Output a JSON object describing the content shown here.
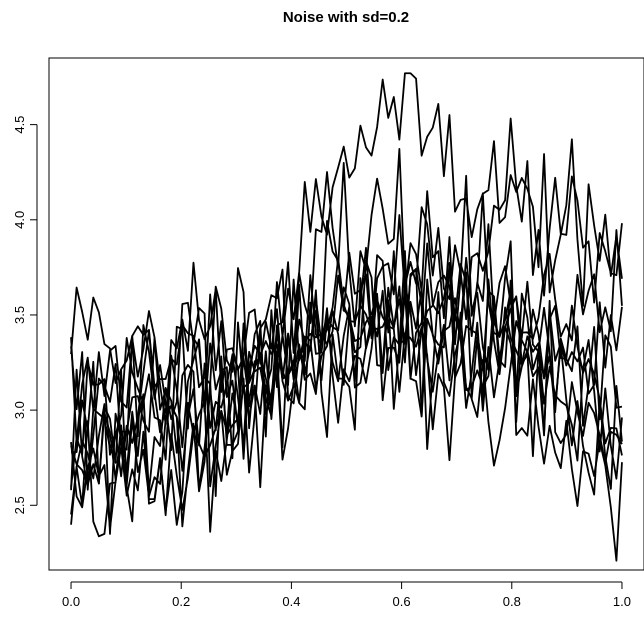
{
  "chart_data": {
    "type": "line",
    "title": "Noise with sd=0.2",
    "xlabel": "",
    "ylabel": "",
    "xlim": [
      -0.04,
      1.04
    ],
    "ylim": [
      2.16,
      4.85
    ],
    "x_ticks": [
      0.0,
      0.2,
      0.4,
      0.6,
      0.8,
      1.0
    ],
    "x_tick_labels": [
      "0.0",
      "0.2",
      "0.4",
      "0.6",
      "0.8",
      "1.0"
    ],
    "y_ticks": [
      2.5,
      3.0,
      3.5,
      4.0,
      4.5
    ],
    "y_tick_labels": [
      "2.5",
      "3.0",
      "3.5",
      "4.0",
      "4.5"
    ],
    "grid": false,
    "legend": "none",
    "line_color": "#000000",
    "x_points": 100,
    "series": [
      {
        "base": [
          3.35,
          3.55,
          3.25,
          3.1,
          3.3,
          3.45,
          3.4,
          3.55,
          4.1,
          4.4,
          4.55,
          4.6,
          4.45,
          4.25,
          4.1,
          4.05,
          4.0,
          3.85,
          3.8
        ],
        "seed": 11
      },
      {
        "base": [
          3.0,
          2.95,
          2.85,
          2.7,
          2.9,
          3.0,
          3.1,
          3.3,
          3.7,
          3.95,
          3.95,
          3.9,
          3.8,
          3.9,
          4.05,
          4.0,
          3.9,
          3.8,
          3.75
        ],
        "seed": 23
      },
      {
        "base": [
          2.8,
          3.0,
          3.1,
          3.0,
          3.2,
          3.35,
          3.3,
          3.4,
          3.55,
          3.6,
          3.65,
          3.8,
          3.7,
          3.75,
          3.6,
          3.5,
          3.3,
          3.1,
          2.95
        ],
        "seed": 37
      },
      {
        "base": [
          2.5,
          2.55,
          2.65,
          2.75,
          2.8,
          2.85,
          3.0,
          3.15,
          3.3,
          3.4,
          3.45,
          3.5,
          3.45,
          3.35,
          3.25,
          3.1,
          2.95,
          2.8,
          2.65
        ],
        "seed": 41
      },
      {
        "base": [
          3.1,
          3.2,
          3.3,
          3.4,
          3.45,
          3.5,
          3.4,
          3.3,
          3.35,
          3.45,
          3.4,
          3.3,
          3.25,
          3.3,
          3.35,
          3.4,
          3.45,
          3.5,
          3.55
        ],
        "seed": 53
      },
      {
        "base": [
          2.6,
          2.6,
          2.7,
          2.65,
          2.7,
          2.8,
          2.95,
          3.1,
          3.2,
          3.3,
          3.3,
          3.35,
          3.4,
          3.5,
          3.45,
          3.3,
          3.1,
          2.9,
          2.8
        ],
        "seed": 67
      },
      {
        "base": [
          2.9,
          3.05,
          2.95,
          3.0,
          3.15,
          3.05,
          3.25,
          3.3,
          3.2,
          3.35,
          3.5,
          3.45,
          3.4,
          3.3,
          3.2,
          3.2,
          3.1,
          3.0,
          2.9
        ],
        "seed": 79
      },
      {
        "base": [
          2.7,
          2.85,
          2.9,
          3.1,
          3.05,
          3.0,
          3.1,
          3.25,
          3.45,
          3.55,
          3.5,
          3.35,
          3.3,
          3.4,
          3.45,
          3.4,
          3.35,
          3.2,
          3.15
        ],
        "seed": 83
      },
      {
        "base": [
          3.05,
          2.9,
          2.75,
          2.85,
          2.95,
          3.1,
          3.2,
          3.15,
          3.3,
          3.45,
          3.55,
          3.6,
          3.55,
          3.5,
          3.4,
          3.3,
          3.25,
          3.3,
          3.4
        ],
        "seed": 97
      },
      {
        "base": [
          2.75,
          2.7,
          2.85,
          2.95,
          2.8,
          2.95,
          3.05,
          3.2,
          3.35,
          3.3,
          3.4,
          3.55,
          3.6,
          3.5,
          3.35,
          3.2,
          3.05,
          2.95,
          2.75
        ],
        "seed": 101
      }
    ],
    "noise_sd": 0.2
  }
}
